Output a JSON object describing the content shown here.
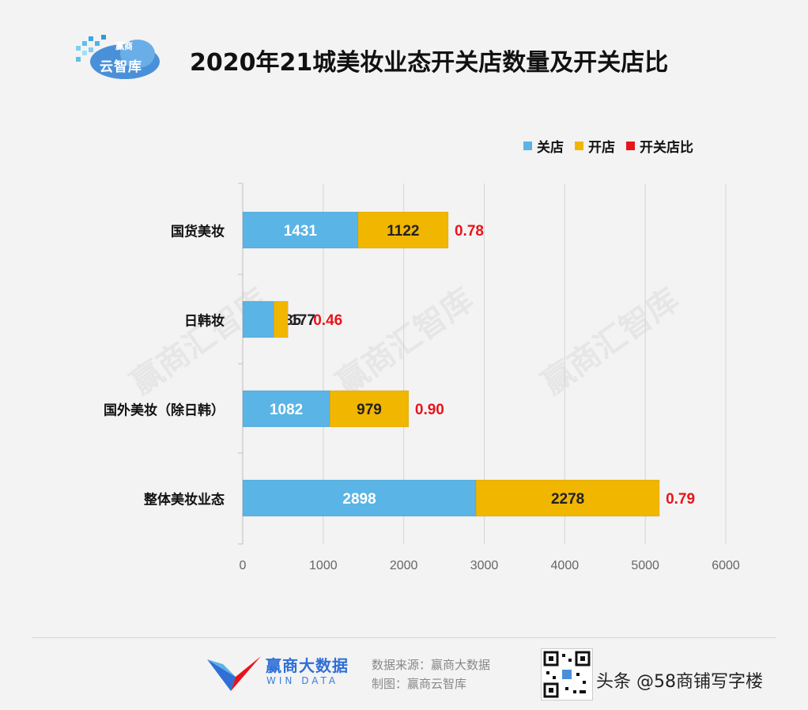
{
  "header": {
    "logo_line1": "赢商",
    "logo_line2": "云智库",
    "title": "2020年21城美妆业态开关店数量及开关店比"
  },
  "legend": [
    {
      "label": "关店",
      "color": "#5ab4e5"
    },
    {
      "label": "开店",
      "color": "#f1b600"
    },
    {
      "label": "开关店比",
      "color": "#e8141b"
    }
  ],
  "watermarks": [
    "赢商汇智库",
    "赢商汇智库",
    "赢商汇智库"
  ],
  "chart_data": {
    "type": "bar",
    "orientation": "horizontal",
    "stacked": true,
    "title": "2020年21城美妆业态开关店数量及开关店比",
    "categories": [
      "国货美妆",
      "日韩妆",
      "国外美妆（除日韩）",
      "整体美妆业态"
    ],
    "series": [
      {
        "name": "关店",
        "color": "#5ab4e5",
        "values": [
          1431,
          385,
          1082,
          2898
        ]
      },
      {
        "name": "开店",
        "color": "#f1b600",
        "values": [
          1122,
          177,
          979,
          2278
        ]
      }
    ],
    "ratio": {
      "name": "开关店比",
      "color": "#e8141b",
      "values": [
        "0.78",
        "0.46",
        "0.90",
        "0.79"
      ]
    },
    "xlim": [
      0,
      6000
    ],
    "xticks": [
      0,
      1000,
      2000,
      3000,
      4000,
      5000,
      6000
    ],
    "grid": true,
    "legend_position": "top-right"
  },
  "footer": {
    "brand_cn": "赢商大数据",
    "brand_en": "WIN DATA",
    "source": "数据来源：赢商大数据",
    "maker": "制图：赢商云智库",
    "toutiao": "头条 @58商铺写字楼"
  }
}
